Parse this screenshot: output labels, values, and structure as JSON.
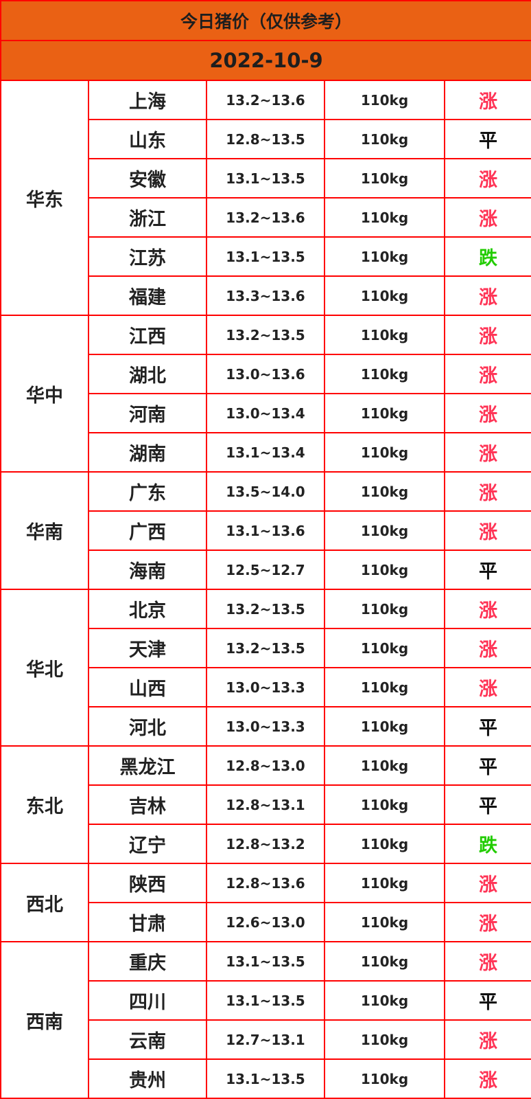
{
  "title": "今日猪价（仅供参考）",
  "date": "2022-10-9",
  "colors": {
    "header_bg": "#ea6114",
    "border": "#ff0000",
    "up": "#ff3355",
    "down": "#22cc00",
    "flat": "#111111"
  },
  "trend_labels": {
    "up": "涨",
    "flat": "平",
    "down": "跌"
  },
  "regions": [
    {
      "name": "华东",
      "rows": [
        {
          "province": "上海",
          "price": "13.2~13.6",
          "weight": "110kg",
          "trend": "up"
        },
        {
          "province": "山东",
          "price": "12.8~13.5",
          "weight": "110kg",
          "trend": "flat"
        },
        {
          "province": "安徽",
          "price": "13.1~13.5",
          "weight": "110kg",
          "trend": "up"
        },
        {
          "province": "浙江",
          "price": "13.2~13.6",
          "weight": "110kg",
          "trend": "up"
        },
        {
          "province": "江苏",
          "price": "13.1~13.5",
          "weight": "110kg",
          "trend": "down"
        },
        {
          "province": "福建",
          "price": "13.3~13.6",
          "weight": "110kg",
          "trend": "up"
        }
      ]
    },
    {
      "name": "华中",
      "rows": [
        {
          "province": "江西",
          "price": "13.2~13.5",
          "weight": "110kg",
          "trend": "up"
        },
        {
          "province": "湖北",
          "price": "13.0~13.6",
          "weight": "110kg",
          "trend": "up"
        },
        {
          "province": "河南",
          "price": "13.0~13.4",
          "weight": "110kg",
          "trend": "up"
        },
        {
          "province": "湖南",
          "price": "13.1~13.4",
          "weight": "110kg",
          "trend": "up"
        }
      ]
    },
    {
      "name": "华南",
      "rows": [
        {
          "province": "广东",
          "price": "13.5~14.0",
          "weight": "110kg",
          "trend": "up"
        },
        {
          "province": "广西",
          "price": "13.1~13.6",
          "weight": "110kg",
          "trend": "up"
        },
        {
          "province": "海南",
          "price": "12.5~12.7",
          "weight": "110kg",
          "trend": "flat"
        }
      ]
    },
    {
      "name": "华北",
      "rows": [
        {
          "province": "北京",
          "price": "13.2~13.5",
          "weight": "110kg",
          "trend": "up"
        },
        {
          "province": "天津",
          "price": "13.2~13.5",
          "weight": "110kg",
          "trend": "up"
        },
        {
          "province": "山西",
          "price": "13.0~13.3",
          "weight": "110kg",
          "trend": "up"
        },
        {
          "province": "河北",
          "price": "13.0~13.3",
          "weight": "110kg",
          "trend": "flat"
        }
      ]
    },
    {
      "name": "东北",
      "rows": [
        {
          "province": "黑龙江",
          "price": "12.8~13.0",
          "weight": "110kg",
          "trend": "flat"
        },
        {
          "province": "吉林",
          "price": "12.8~13.1",
          "weight": "110kg",
          "trend": "flat"
        },
        {
          "province": "辽宁",
          "price": "12.8~13.2",
          "weight": "110kg",
          "trend": "down"
        }
      ]
    },
    {
      "name": "西北",
      "rows": [
        {
          "province": "陕西",
          "price": "12.8~13.6",
          "weight": "110kg",
          "trend": "up"
        },
        {
          "province": "甘肃",
          "price": "12.6~13.0",
          "weight": "110kg",
          "trend": "up"
        }
      ]
    },
    {
      "name": "西南",
      "rows": [
        {
          "province": "重庆",
          "price": "13.1~13.5",
          "weight": "110kg",
          "trend": "up"
        },
        {
          "province": "四川",
          "price": "13.1~13.5",
          "weight": "110kg",
          "trend": "flat"
        },
        {
          "province": "云南",
          "price": "12.7~13.1",
          "weight": "110kg",
          "trend": "up"
        },
        {
          "province": "贵州",
          "price": "13.1~13.5",
          "weight": "110kg",
          "trend": "up"
        }
      ]
    }
  ]
}
